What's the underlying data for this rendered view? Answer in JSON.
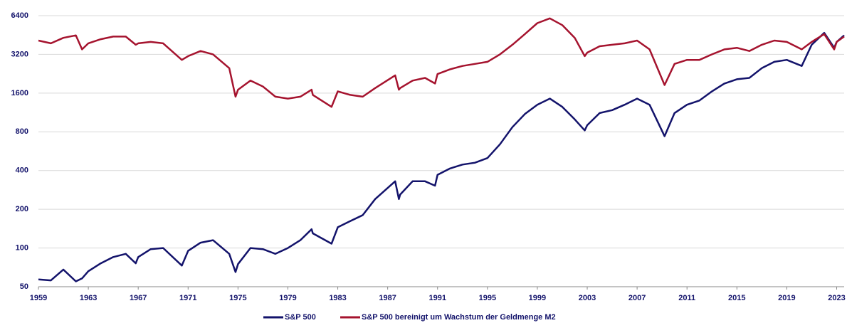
{
  "chart_data": {
    "type": "line",
    "log": true,
    "grid": true,
    "legend": "bottom",
    "xlim": [
      1959,
      2023.6
    ],
    "xticks": [
      1959,
      1963,
      1967,
      1971,
      1975,
      1979,
      1983,
      1987,
      1991,
      1995,
      1999,
      2003,
      2007,
      2011,
      2015,
      2019,
      2023
    ],
    "ylim": [
      50,
      6400
    ],
    "yticks": [
      50,
      100,
      200,
      400,
      800,
      1600,
      3200,
      6400
    ],
    "x": [
      1959,
      1960,
      1961,
      1962,
      1962.5,
      1963,
      1964,
      1965,
      1966,
      1966.8,
      1967,
      1968,
      1969,
      1970.5,
      1971,
      1972,
      1973,
      1974.3,
      1974.8,
      1975,
      1976,
      1977,
      1978,
      1979,
      1980,
      1980.9,
      1981,
      1982.5,
      1983,
      1984,
      1985,
      1986,
      1987.6,
      1987.9,
      1988,
      1989,
      1990,
      1990.8,
      1991,
      1992,
      1993,
      1994,
      1995,
      1996,
      1997,
      1998,
      1999,
      2000,
      2001,
      2002,
      2002.8,
      2003,
      2004,
      2005,
      2006,
      2007,
      2008,
      2009.2,
      2010,
      2011,
      2012,
      2013,
      2014,
      2015,
      2016,
      2017,
      2018,
      2019,
      2020.2,
      2021,
      2022,
      2022.8,
      2023,
      2023.6
    ],
    "series": [
      {
        "name": "S&P 500",
        "color": "#13136b",
        "values": [
          57,
          56,
          68,
          55,
          58,
          66,
          76,
          85,
          90,
          76,
          85,
          98,
          100,
          73,
          95,
          110,
          115,
          90,
          65,
          75,
          100,
          98,
          90,
          100,
          115,
          140,
          130,
          108,
          145,
          162,
          180,
          240,
          330,
          240,
          260,
          330,
          330,
          305,
          370,
          415,
          445,
          460,
          500,
          640,
          870,
          1100,
          1300,
          1450,
          1250,
          1000,
          820,
          900,
          1120,
          1180,
          1300,
          1450,
          1300,
          740,
          1120,
          1300,
          1400,
          1650,
          1900,
          2050,
          2100,
          2500,
          2800,
          2900,
          2600,
          3800,
          4700,
          3600,
          4000,
          4500
        ]
      },
      {
        "name": "S&P 500 bereinigt um Wachstum der Geldmenge M2",
        "color": "#a5132e",
        "values": [
          4100,
          3900,
          4300,
          4500,
          3500,
          3900,
          4200,
          4400,
          4400,
          3800,
          3900,
          4000,
          3900,
          2900,
          3100,
          3400,
          3200,
          2500,
          1500,
          1700,
          2000,
          1800,
          1500,
          1450,
          1500,
          1700,
          1550,
          1250,
          1650,
          1550,
          1500,
          1750,
          2200,
          1700,
          1750,
          2000,
          2100,
          1900,
          2250,
          2450,
          2600,
          2700,
          2800,
          3200,
          3800,
          4600,
          5600,
          6100,
          5400,
          4300,
          3100,
          3300,
          3700,
          3800,
          3900,
          4100,
          3500,
          1850,
          2700,
          2900,
          2900,
          3200,
          3500,
          3600,
          3400,
          3800,
          4100,
          4000,
          3500,
          4000,
          4600,
          3500,
          4000,
          4400
        ]
      }
    ]
  }
}
